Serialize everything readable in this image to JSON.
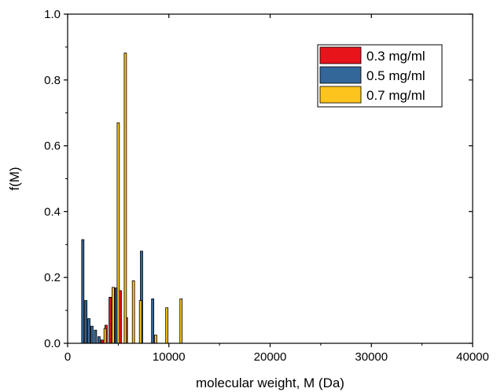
{
  "chart_data": {
    "type": "bar",
    "xlabel": "molecular weight, M (Da)",
    "ylabel": "f(M)",
    "xlim": [
      0,
      40000
    ],
    "ylim": [
      0,
      1.0
    ],
    "xticks": [
      0,
      10000,
      20000,
      30000,
      40000
    ],
    "yticks": [
      0.0,
      0.2,
      0.4,
      0.6,
      0.8,
      1.0
    ],
    "ytick_labels": [
      "0.0",
      "0.2",
      "0.4",
      "0.6",
      "0.8",
      "1.0"
    ],
    "grid": false,
    "legend_position": "top-right",
    "bar_width": 230,
    "series": [
      {
        "name": "0.3 mg/ml",
        "color": "#e8141b",
        "x": [
          3400,
          3800,
          4200,
          4600,
          5200,
          5800
        ],
        "values": [
          0.01,
          0.055,
          0.14,
          0.168,
          0.16,
          0.078
        ]
      },
      {
        "name": "0.5 mg/ml",
        "color": "#336699",
        "x": [
          1500,
          1800,
          2100,
          2400,
          2750,
          3100,
          4800,
          7300,
          8400
        ],
        "values": [
          0.315,
          0.13,
          0.075,
          0.052,
          0.04,
          0.02,
          0.168,
          0.28,
          0.135
        ]
      },
      {
        "name": "0.7 mg/ml",
        "color": "#fcc41c",
        "x": [
          3700,
          4500,
          5000,
          5700,
          6500,
          7200,
          8700,
          9800,
          11200
        ],
        "values": [
          0.045,
          0.17,
          0.67,
          0.882,
          0.19,
          0.13,
          0.025,
          0.108,
          0.135
        ]
      }
    ]
  }
}
